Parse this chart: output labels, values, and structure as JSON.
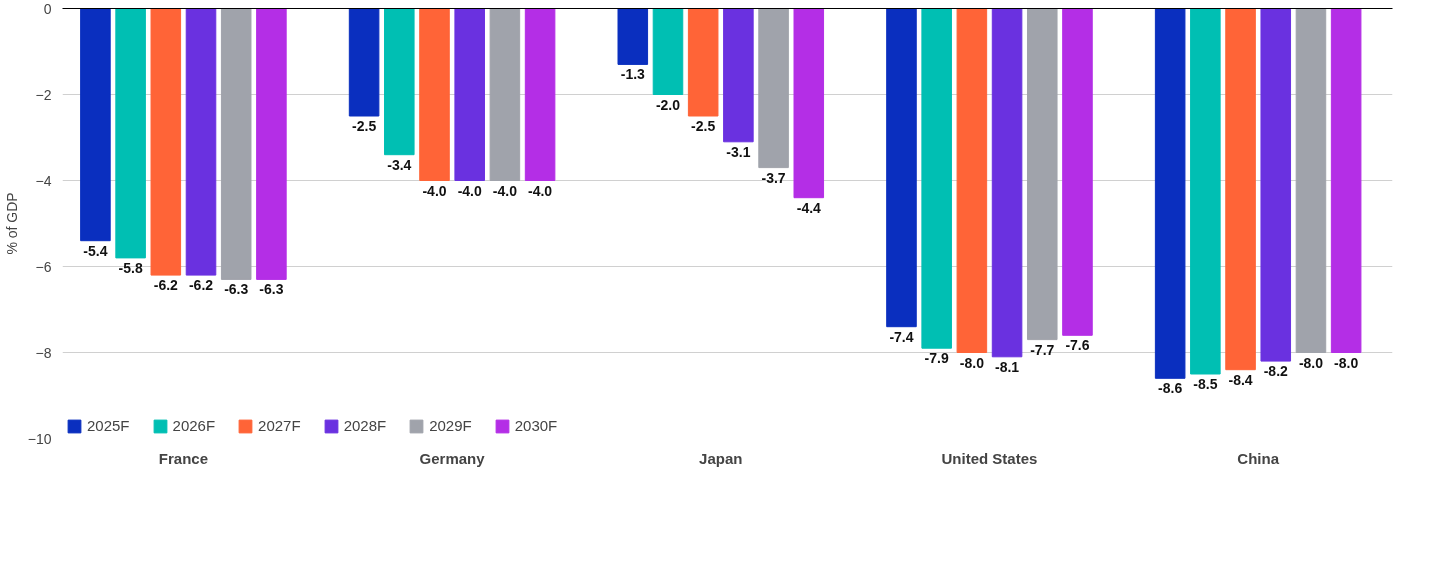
{
  "chart_data": {
    "type": "bar",
    "ylabel": "% of GDP",
    "categories": [
      "France",
      "Germany",
      "Japan",
      "United States",
      "China"
    ],
    "series": [
      {
        "name": "2025F",
        "color": "#0a2fbf",
        "values": [
          -5.4,
          -2.5,
          -1.3,
          -7.4,
          -8.6
        ],
        "value_labels": [
          "-5.4",
          "-2.5",
          "-1.3",
          "-7.4",
          "-8.6"
        ]
      },
      {
        "name": "2026F",
        "color": "#00bfb3",
        "values": [
          -5.8,
          -3.4,
          -2.0,
          -7.9,
          -8.5
        ],
        "value_labels": [
          "-5.8",
          "-3.4",
          "-2.0",
          "-7.9",
          "-8.5"
        ]
      },
      {
        "name": "2027F",
        "color": "#ff6437",
        "values": [
          -6.2,
          -4.0,
          -2.5,
          -8.0,
          -8.4
        ],
        "value_labels": [
          "-6.2",
          "-4.0",
          "-2.5",
          "-8.0",
          "-8.4"
        ]
      },
      {
        "name": "2028F",
        "color": "#6a31e0",
        "values": [
          -6.2,
          -4.0,
          -3.1,
          -8.1,
          -8.2
        ],
        "value_labels": [
          "-6.2",
          "-4.0",
          "-3.1",
          "-8.1",
          "-8.2"
        ]
      },
      {
        "name": "2029F",
        "color": "#a0a3ab",
        "values": [
          -6.3,
          -4.0,
          -3.7,
          -7.7,
          -8.0
        ],
        "value_labels": [
          "-6.3",
          "-4.0",
          "-3.7",
          "-7.7",
          "-8.0"
        ]
      },
      {
        "name": "2030F",
        "color": "#b42ee6",
        "values": [
          -6.3,
          -4.0,
          -4.4,
          -7.6,
          -8.0
        ],
        "value_labels": [
          "-6.3",
          "-4.0",
          "-4.4",
          "-7.6",
          "-8.0"
        ]
      }
    ],
    "ylim": [
      -10,
      0
    ],
    "yticks": [
      0,
      -2,
      -4,
      -6,
      -8,
      -10
    ],
    "grid": "y",
    "legend": "bottom left"
  }
}
